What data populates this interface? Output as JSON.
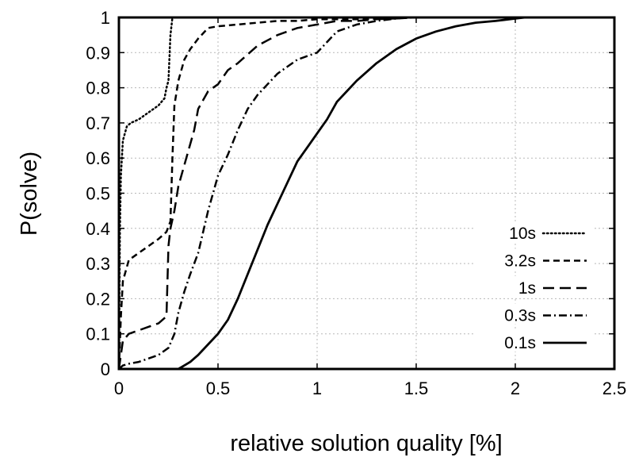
{
  "chart_data": {
    "type": "line",
    "title": "",
    "xlabel": "relative solution quality [%]",
    "ylabel": "P(solve)",
    "xlim": [
      0,
      2.5
    ],
    "ylim": [
      0,
      1
    ],
    "xticks": [
      "0",
      "0.5",
      "1",
      "1.5",
      "2",
      "2.5"
    ],
    "yticks": [
      "0",
      "0.1",
      "0.2",
      "0.3",
      "0.4",
      "0.5",
      "0.6",
      "0.7",
      "0.8",
      "0.9",
      "1"
    ],
    "grid": true,
    "legend_position": "bottom-right",
    "series": [
      {
        "name": "10s",
        "style": "dotted",
        "x": [
          0,
          0.005,
          0.01,
          0.02,
          0.04,
          0.06,
          0.1,
          0.15,
          0.2,
          0.23,
          0.24,
          0.25,
          0.26,
          0.27,
          0.3
        ],
        "y": [
          0,
          0.4,
          0.55,
          0.65,
          0.69,
          0.7,
          0.71,
          0.73,
          0.75,
          0.77,
          0.8,
          0.82,
          0.95,
          1.0,
          1.0
        ]
      },
      {
        "name": "3.2s",
        "style": "short-dash",
        "x": [
          0,
          0.01,
          0.02,
          0.05,
          0.1,
          0.15,
          0.2,
          0.24,
          0.26,
          0.27,
          0.28,
          0.3,
          0.33,
          0.36,
          0.4,
          0.45,
          0.5,
          0.6,
          0.7,
          0.8,
          0.9,
          1.0,
          1.1,
          1.2,
          1.3,
          1.4,
          1.47,
          1.5
        ],
        "y": [
          0,
          0.15,
          0.25,
          0.31,
          0.33,
          0.35,
          0.37,
          0.39,
          0.42,
          0.6,
          0.75,
          0.82,
          0.88,
          0.91,
          0.94,
          0.97,
          0.975,
          0.98,
          0.985,
          0.99,
          0.99,
          0.995,
          0.995,
          0.995,
          0.996,
          0.997,
          1.0,
          1.0
        ]
      },
      {
        "name": "1s",
        "style": "long-dash",
        "x": [
          0,
          0.02,
          0.05,
          0.1,
          0.15,
          0.2,
          0.24,
          0.25,
          0.26,
          0.28,
          0.3,
          0.33,
          0.36,
          0.38,
          0.4,
          0.45,
          0.5,
          0.55,
          0.6,
          0.7,
          0.8,
          0.9,
          1.0,
          1.1,
          1.2,
          1.3,
          1.4,
          1.45,
          1.5
        ],
        "y": [
          0,
          0.08,
          0.1,
          0.11,
          0.12,
          0.13,
          0.15,
          0.35,
          0.4,
          0.45,
          0.52,
          0.58,
          0.64,
          0.68,
          0.74,
          0.79,
          0.81,
          0.85,
          0.87,
          0.92,
          0.95,
          0.97,
          0.98,
          0.99,
          0.99,
          0.995,
          0.997,
          1.0,
          1.0
        ]
      },
      {
        "name": "0.3s",
        "style": "dash-dot",
        "x": [
          0,
          0.02,
          0.05,
          0.1,
          0.15,
          0.2,
          0.25,
          0.28,
          0.3,
          0.33,
          0.36,
          0.4,
          0.45,
          0.5,
          0.55,
          0.6,
          0.65,
          0.7,
          0.75,
          0.8,
          0.85,
          0.9,
          0.95,
          1.0,
          1.05,
          1.1,
          1.2,
          1.3,
          1.4,
          1.5
        ],
        "y": [
          0,
          0.01,
          0.015,
          0.02,
          0.03,
          0.04,
          0.06,
          0.1,
          0.16,
          0.22,
          0.27,
          0.33,
          0.45,
          0.55,
          0.61,
          0.68,
          0.74,
          0.78,
          0.81,
          0.84,
          0.86,
          0.88,
          0.89,
          0.9,
          0.93,
          0.96,
          0.98,
          0.99,
          0.997,
          1.0
        ]
      },
      {
        "name": "0.1s",
        "style": "solid",
        "x": [
          0.3,
          0.33,
          0.36,
          0.4,
          0.45,
          0.5,
          0.55,
          0.6,
          0.65,
          0.7,
          0.75,
          0.8,
          0.85,
          0.9,
          0.95,
          1.0,
          1.05,
          1.1,
          1.15,
          1.2,
          1.3,
          1.4,
          1.5,
          1.6,
          1.7,
          1.8,
          1.9,
          2.0,
          2.05,
          2.1
        ],
        "y": [
          0,
          0.01,
          0.02,
          0.04,
          0.07,
          0.1,
          0.14,
          0.2,
          0.27,
          0.34,
          0.41,
          0.47,
          0.53,
          0.59,
          0.63,
          0.67,
          0.71,
          0.76,
          0.79,
          0.82,
          0.87,
          0.91,
          0.94,
          0.96,
          0.975,
          0.985,
          0.99,
          0.997,
          1.0,
          1.0
        ]
      }
    ]
  }
}
